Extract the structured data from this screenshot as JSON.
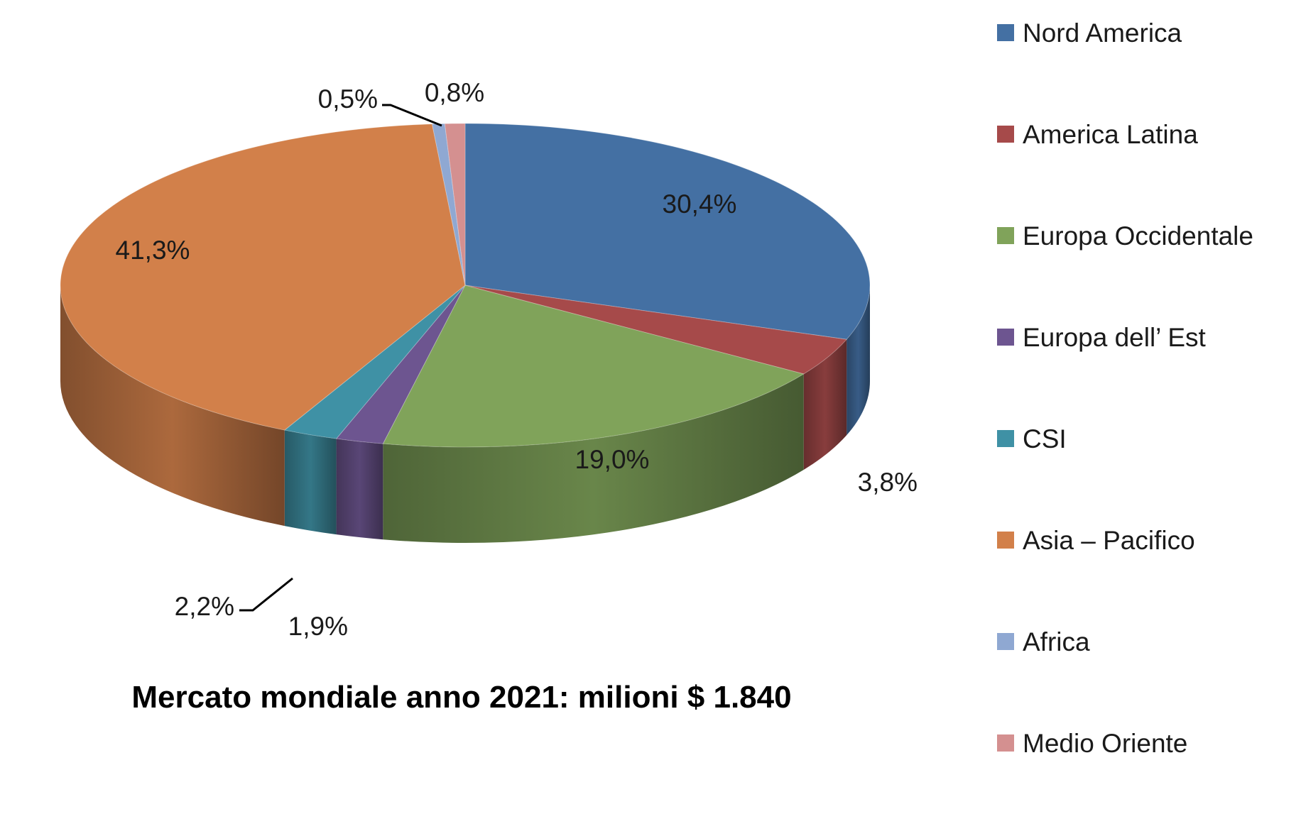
{
  "chart_data": {
    "type": "pie",
    "title": "Mercato mondiale anno 2021: milioni $ 1.840",
    "legend_position": "right",
    "slices": [
      {
        "label": "Nord America",
        "value": 30.4,
        "display": "30,4%",
        "color": "#4470a3"
      },
      {
        "label": "America Latina",
        "value": 3.8,
        "display": "3,8%",
        "color": "#a64a4a"
      },
      {
        "label": "Europa Occidentale",
        "value": 19.0,
        "display": "19,0%",
        "color": "#80a35a"
      },
      {
        "label": "Europa dell’ Est",
        "value": 1.9,
        "display": "1,9%",
        "color": "#6d5590"
      },
      {
        "label": "CSI",
        "value": 2.2,
        "display": "2,2%",
        "color": "#3f91a5"
      },
      {
        "label": "Asia – Pacifico",
        "value": 41.3,
        "display": "41,3%",
        "color": "#d2804a"
      },
      {
        "label": "Africa",
        "value": 0.5,
        "display": "0,5%",
        "color": "#8fa8d2"
      },
      {
        "label": "Medio Oriente",
        "value": 0.8,
        "display": "0,8%",
        "color": "#d49090"
      }
    ]
  }
}
